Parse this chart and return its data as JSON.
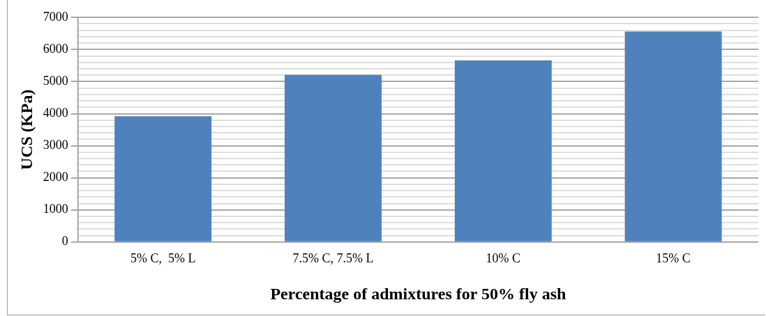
{
  "chart_data": {
    "type": "bar",
    "xlabel": "Percentage of admixtures for 50% fly ash",
    "ylabel": "UCS (KPa)",
    "categories": [
      "5% C,  5% L",
      "7.5% C, 7.5% L",
      "10% C",
      "15% C"
    ],
    "values": [
      3920,
      5210,
      5660,
      6560
    ],
    "color": "#4f81bd",
    "ylim": [
      0,
      7000
    ],
    "yticks": [
      0,
      {
        "value": 200,
        "label": null
      },
      {
        "value": 400,
        "label": null
      },
      {
        "value": 600,
        "label": null
      },
      {
        "value": 800,
        "label": null
      },
      1000,
      {
        "value": 1200,
        "label": null
      },
      {
        "value": 1400,
        "label": null
      },
      {
        "value": 1600,
        "label": null
      },
      {
        "value": 1800,
        "label": null
      },
      2000,
      {
        "value": 2200,
        "label": null
      },
      {
        "value": 2400,
        "label": null
      },
      {
        "value": 2600,
        "label": null
      },
      {
        "value": 2800,
        "label": null
      },
      3000,
      {
        "value": 3200,
        "label": null
      },
      {
        "value": 3400,
        "label": null
      },
      {
        "value": 3600,
        "label": null
      },
      {
        "value": 3800,
        "label": null
      },
      4000,
      {
        "value": 4200,
        "label": null
      },
      {
        "value": 4400,
        "label": null
      },
      {
        "value": 4600,
        "label": null
      },
      {
        "value": 4800,
        "label": null
      },
      5000,
      {
        "value": 5200,
        "label": null
      },
      {
        "value": 5400,
        "label": null
      },
      {
        "value": 5600,
        "label": null
      },
      {
        "value": 5800,
        "label": null
      },
      6000,
      {
        "value": 6200,
        "label": null
      },
      {
        "value": 6400,
        "label": null
      },
      {
        "value": 6600,
        "label": null
      },
      {
        "value": 6800,
        "label": null
      },
      7000
    ],
    "grid": "y"
  }
}
